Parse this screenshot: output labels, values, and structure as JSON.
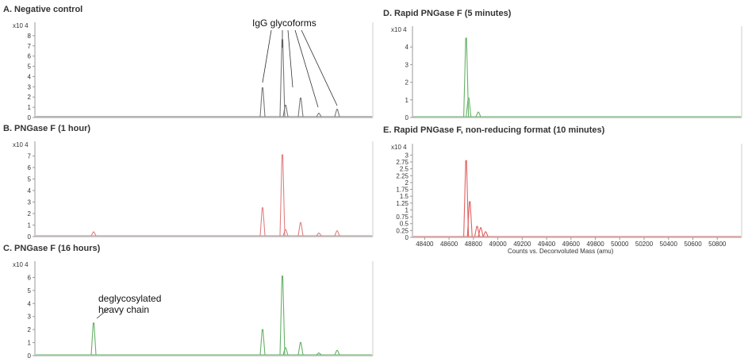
{
  "chart_data": [
    {
      "type": "line",
      "id": "A",
      "title": "A. Negative control",
      "multiplier": "x10 4",
      "ylim": [
        0,
        9
      ],
      "yticks": [
        0,
        1,
        2,
        3,
        4,
        5,
        6,
        7,
        8
      ],
      "color": "#777777",
      "xlim": [
        48300,
        51000
      ],
      "series": [
        {
          "name": "spectrum",
          "peaks": [
            [
              48050,
              0.0
            ],
            [
              48750,
              2.9
            ],
            [
              48900,
              7.6
            ],
            [
              48930,
              1.2
            ],
            [
              49060,
              1.9
            ],
            [
              49220,
              0.4
            ],
            [
              49380,
              0.8
            ]
          ]
        }
      ],
      "annotation": "IgG glycoforms"
    },
    {
      "type": "line",
      "id": "B",
      "title": "B. PNGase F (1 hour)",
      "multiplier": "x10 4",
      "ylim": [
        0,
        8
      ],
      "yticks": [
        0,
        1,
        2,
        3,
        4,
        5,
        6,
        7
      ],
      "color": "#e08080",
      "xlim": [
        48300,
        51000
      ],
      "series": [
        {
          "name": "spectrum",
          "peaks": [
            [
              47500,
              0.4
            ],
            [
              48750,
              2.5
            ],
            [
              48900,
              7.1
            ],
            [
              48930,
              0.6
            ],
            [
              49060,
              1.2
            ],
            [
              49220,
              0.3
            ],
            [
              49380,
              0.5
            ]
          ]
        }
      ]
    },
    {
      "type": "line",
      "id": "C",
      "title": "C. PNGase F (16 hours)",
      "multiplier": "x10 4",
      "ylim": [
        0,
        7
      ],
      "yticks": [
        0,
        1,
        2,
        3,
        4,
        5,
        6
      ],
      "color": "#66b066",
      "xlim": [
        48300,
        51000
      ],
      "series": [
        {
          "name": "spectrum",
          "peaks": [
            [
              47500,
              2.5
            ],
            [
              48750,
              2.0
            ],
            [
              48900,
              6.1
            ],
            [
              48930,
              0.6
            ],
            [
              49060,
              1.0
            ],
            [
              49220,
              0.2
            ],
            [
              49380,
              0.4
            ]
          ]
        }
      ],
      "annotation": "deglycosylated\nheavy chain"
    },
    {
      "type": "line",
      "id": "D",
      "title": "D. Rapid PNGase F (5 minutes)",
      "multiplier": "x10 4",
      "ylim": [
        0,
        5
      ],
      "yticks": [
        0,
        1,
        2,
        3,
        4
      ],
      "color": "#66b066",
      "xlim": [
        48300,
        51000
      ],
      "series": [
        {
          "name": "spectrum",
          "peaks": [
            [
              48740,
              4.5
            ],
            [
              48760,
              1.1
            ],
            [
              48840,
              0.3
            ]
          ]
        }
      ]
    },
    {
      "type": "line",
      "id": "E",
      "title": "E. Rapid PNGase F, non-reducing format (10 minutes)",
      "multiplier": "x10 4",
      "ylim": [
        0,
        3.3
      ],
      "yticks": [
        0,
        0.25,
        0.5,
        0.75,
        1,
        1.25,
        1.5,
        1.75,
        2,
        2.25,
        2.5,
        2.75,
        3
      ],
      "ytick_labels": [
        "0",
        "0.25",
        "0.5",
        "0.75",
        "1",
        "1.25",
        "1.5",
        "1.75",
        "2",
        "2.25",
        "2.5",
        "2.75",
        "3"
      ],
      "color": "#e06060",
      "xlim": [
        48300,
        51000
      ],
      "xticks": [
        48400,
        48600,
        48800,
        49000,
        49200,
        49400,
        49600,
        49800,
        50000,
        50200,
        50400,
        50600,
        50800
      ],
      "xlabel": "Counts vs. Deconvoluted Mass (amu)",
      "series": [
        {
          "name": "spectrum",
          "peaks": [
            [
              48740,
              2.8
            ],
            [
              48770,
              1.3
            ],
            [
              48830,
              0.4
            ],
            [
              48860,
              0.35
            ],
            [
              48900,
              0.2
            ]
          ]
        }
      ]
    }
  ]
}
